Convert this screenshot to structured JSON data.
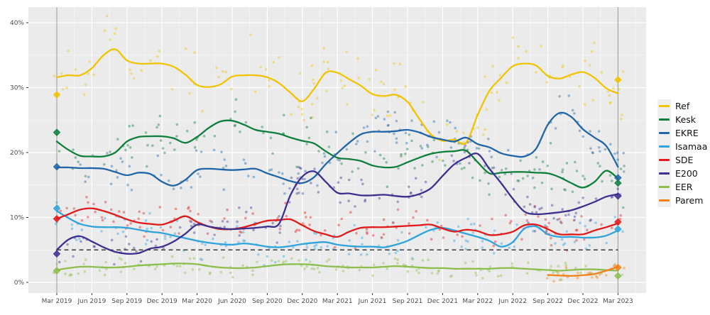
{
  "chart_data": {
    "type": "scatter",
    "subtype": "poll-tracker with loess smoothed lines",
    "title": "",
    "xlabel": "",
    "ylabel": "",
    "x_axis": {
      "tick_labels": [
        "Mar 2019",
        "Jun 2019",
        "Sep 2019",
        "Dec 2019",
        "Mar 2020",
        "Jun 2020",
        "Sep 2020",
        "Dec 2020",
        "Mar 2021",
        "Jun 2021",
        "Sep 2021",
        "Dec 2021",
        "Mar 2022",
        "Jun 2022",
        "Sep 2022",
        "Dec 2022",
        "Mar 2023"
      ],
      "tick_months": [
        0,
        3,
        6,
        9,
        12,
        15,
        18,
        21,
        24,
        27,
        30,
        33,
        36,
        39,
        42,
        45,
        48
      ]
    },
    "y_axis": {
      "tick_labels": [
        "0%",
        "10%",
        "20%",
        "30%",
        "40%"
      ],
      "tick_values": [
        0,
        10,
        20,
        30,
        40
      ],
      "minor_values": [
        5,
        15,
        25,
        35
      ]
    },
    "threshold_line": {
      "value": 5,
      "style": "dashed",
      "color": "#3a3a3a"
    },
    "election_vlines_months": [
      0,
      48
    ],
    "panel_bg": "#ebebeb",
    "grid_major": "#ffffff",
    "grid_minor": "#f5f5f5",
    "vline_color": "#a3a3a3",
    "axis_text_color": "#4d4d4d",
    "series": [
      {
        "name": "Ref",
        "color": "#F0C400",
        "start_month": 0,
        "scatter_sd": 2.3,
        "monthly": [
          31.6,
          31.9,
          31.9,
          33.0,
          35.0,
          35.9,
          34.2,
          33.7,
          33.7,
          33.7,
          33.2,
          32.0,
          30.4,
          30.1,
          30.5,
          31.7,
          31.9,
          31.9,
          31.6,
          30.7,
          29.2,
          27.9,
          29.8,
          32.3,
          32.3,
          31.3,
          30.3,
          29.0,
          28.7,
          28.9,
          27.8,
          25.2,
          22.8,
          21.8,
          22.0,
          21.5,
          25.8,
          29.5,
          31.5,
          33.3,
          33.7,
          33.4,
          31.8,
          31.4,
          32.0,
          32.4,
          31.5,
          29.9,
          29.1
        ]
      },
      {
        "name": "Kesk",
        "color": "#0E7E3C",
        "start_month": 0,
        "scatter_sd": 2.0,
        "monthly": [
          21.7,
          20.4,
          19.5,
          19.4,
          19.4,
          20.0,
          21.7,
          22.4,
          22.5,
          22.5,
          22.2,
          21.5,
          22.4,
          23.8,
          24.8,
          24.9,
          24.3,
          23.5,
          23.2,
          22.9,
          22.3,
          21.8,
          21.4,
          20.2,
          19.2,
          19.0,
          18.7,
          18.0,
          17.7,
          17.8,
          18.5,
          19.2,
          19.8,
          20.1,
          20.2,
          20.3,
          18.5,
          16.8,
          16.9,
          17.0,
          17.0,
          16.9,
          16.8,
          16.2,
          15.3,
          14.6,
          15.5,
          17.2,
          16.0
        ]
      },
      {
        "name": "EKRE",
        "color": "#1F65A8",
        "start_month": 0,
        "scatter_sd": 1.8,
        "monthly": [
          17.7,
          17.7,
          17.6,
          17.6,
          17.5,
          17.0,
          16.5,
          16.9,
          16.7,
          15.5,
          14.9,
          15.8,
          17.3,
          17.5,
          17.4,
          17.3,
          17.4,
          17.5,
          16.8,
          16.2,
          15.6,
          15.3,
          16.2,
          18.2,
          19.9,
          21.5,
          22.8,
          23.2,
          23.2,
          23.3,
          23.5,
          23.1,
          22.4,
          22.0,
          21.7,
          22.3,
          21.3,
          20.8,
          19.9,
          19.5,
          19.4,
          20.6,
          24.3,
          26.1,
          25.5,
          23.6,
          22.3,
          21.0,
          17.8
        ]
      },
      {
        "name": "Isamaa",
        "color": "#2FA3DC",
        "start_month": 0,
        "scatter_sd": 1.4,
        "monthly": [
          11.0,
          9.9,
          9.0,
          8.6,
          8.5,
          8.5,
          8.4,
          8.1,
          7.8,
          7.6,
          7.2,
          6.8,
          6.4,
          6.1,
          5.9,
          5.8,
          6.0,
          5.8,
          5.5,
          5.4,
          5.6,
          5.9,
          6.1,
          6.2,
          5.8,
          5.6,
          5.5,
          5.5,
          5.4,
          5.8,
          6.4,
          7.3,
          8.1,
          8.4,
          8.0,
          7.5,
          7.0,
          6.4,
          5.5,
          6.2,
          8.3,
          8.6,
          7.4,
          7.0,
          7.0,
          6.9,
          6.9,
          7.2,
          8.0
        ]
      },
      {
        "name": "SDE",
        "color": "#E01A1A",
        "start_month": 0,
        "scatter_sd": 1.3,
        "monthly": [
          9.8,
          10.5,
          11.2,
          11.4,
          11.0,
          10.4,
          9.7,
          9.2,
          9.0,
          8.9,
          9.5,
          10.2,
          9.3,
          8.6,
          8.2,
          8.2,
          8.5,
          9.0,
          9.5,
          9.6,
          9.7,
          8.8,
          7.9,
          7.4,
          7.0,
          7.8,
          8.4,
          8.5,
          8.5,
          8.6,
          8.7,
          8.8,
          8.9,
          8.3,
          7.8,
          8.1,
          7.9,
          7.3,
          7.4,
          7.8,
          8.8,
          8.9,
          8.2,
          7.4,
          7.4,
          7.4,
          8.0,
          8.5,
          9.1
        ]
      },
      {
        "name": "E200",
        "color": "#3B2F8F",
        "start_month": 0,
        "scatter_sd": 1.4,
        "monthly": [
          5.0,
          6.6,
          7.1,
          6.3,
          5.4,
          4.7,
          4.4,
          4.5,
          5.2,
          5.5,
          6.3,
          7.5,
          8.9,
          8.6,
          8.3,
          8.2,
          8.3,
          8.4,
          8.6,
          9.0,
          13.5,
          16.3,
          17.1,
          15.5,
          13.8,
          13.7,
          13.4,
          13.4,
          13.5,
          13.3,
          13.2,
          13.6,
          14.5,
          16.4,
          18.2,
          19.2,
          19.8,
          17.5,
          15.3,
          12.9,
          10.9,
          10.5,
          10.6,
          10.8,
          11.1,
          11.7,
          12.4,
          13.2,
          13.6
        ]
      },
      {
        "name": "EER",
        "color": "#8CBE4C",
        "start_month": 0,
        "scatter_sd": 0.75,
        "monthly": [
          1.9,
          2.2,
          2.4,
          2.4,
          2.3,
          2.3,
          2.4,
          2.6,
          2.7,
          2.8,
          2.9,
          2.9,
          2.8,
          2.5,
          2.3,
          2.2,
          2.2,
          2.3,
          2.5,
          2.7,
          2.8,
          2.8,
          2.7,
          2.5,
          2.4,
          2.3,
          2.3,
          2.3,
          2.4,
          2.5,
          2.4,
          2.3,
          2.2,
          2.2,
          2.1,
          2.1,
          2.1,
          2.1,
          2.2,
          2.2,
          2.1,
          2.0,
          1.9,
          1.8,
          1.9,
          2.0,
          2.0,
          1.9,
          1.8
        ]
      },
      {
        "name": "Parem",
        "color": "#F28118",
        "start_month": 42,
        "scatter_sd": 0.5,
        "monthly": [
          1.15,
          1.05,
          1.0,
          1.1,
          1.3,
          1.8,
          2.4
        ]
      }
    ],
    "elections": [
      {
        "year": "2019",
        "month": 0,
        "results": {
          "Ref": 28.9,
          "Kesk": 23.1,
          "EKRE": 17.8,
          "Isamaa": 11.4,
          "SDE": 9.8,
          "E200": 4.4,
          "EER": 1.8
        }
      },
      {
        "year": "2023",
        "month": 48,
        "results": {
          "Ref": 31.2,
          "EKRE": 16.1,
          "Kesk": 15.3,
          "E200": 13.3,
          "SDE": 9.3,
          "Isamaa": 8.2,
          "Parem": 2.3,
          "EER": 1.0
        }
      }
    ],
    "legend_entries": [
      "Ref",
      "Kesk",
      "EKRE",
      "Isamaa",
      "SDE",
      "E200",
      "EER",
      "Parem"
    ]
  }
}
